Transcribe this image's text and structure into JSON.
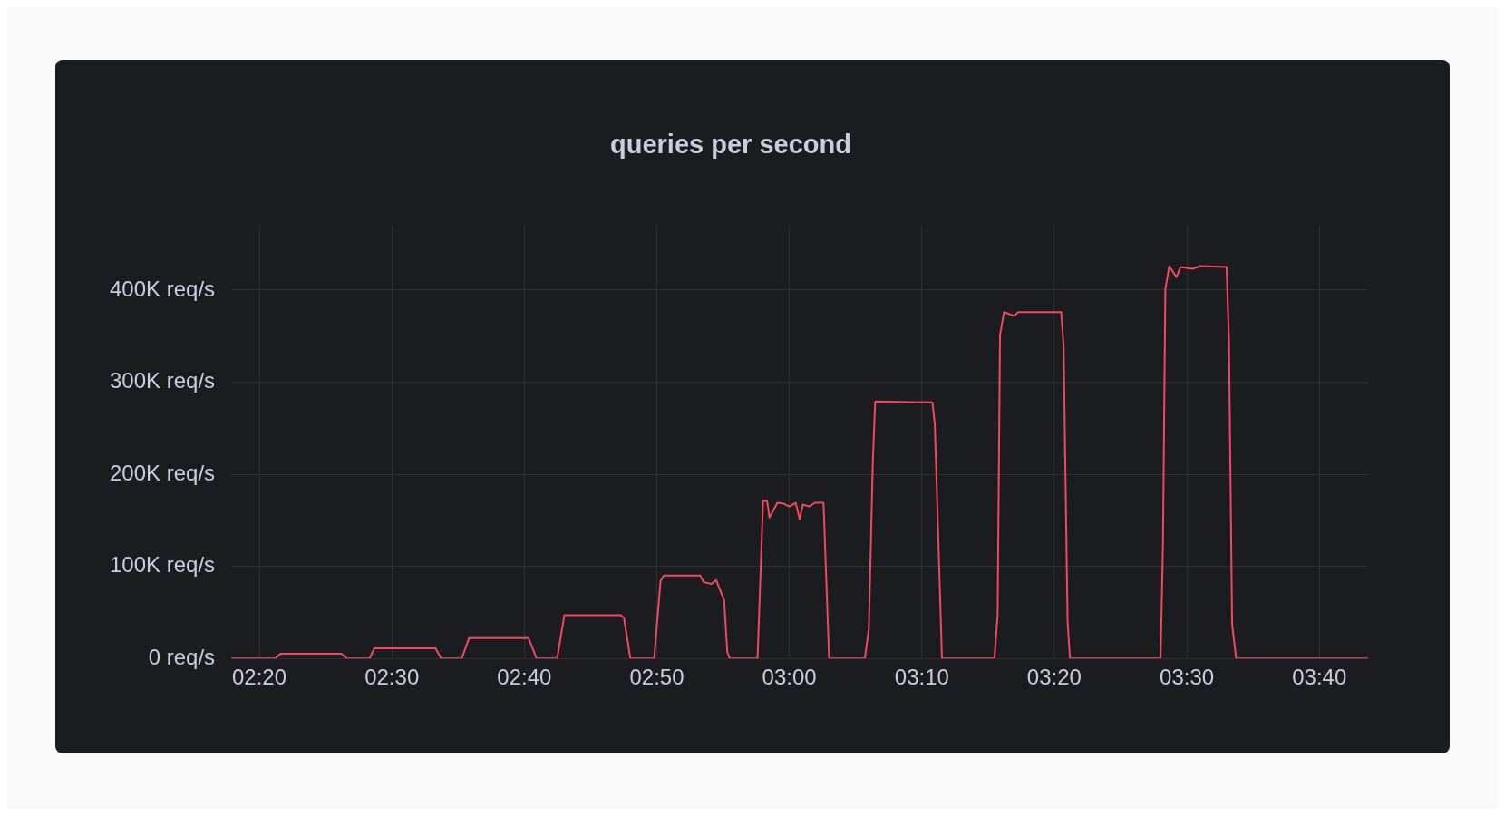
{
  "chart_data": {
    "type": "line",
    "title": "queries per second",
    "x": [
      2.298,
      2.353,
      2.36,
      2.437,
      2.443,
      2.472,
      2.478,
      2.555,
      2.562,
      2.588,
      2.597,
      2.672,
      2.682,
      2.708,
      2.717,
      2.788,
      2.792,
      2.8,
      2.83,
      2.838,
      2.842,
      2.888,
      2.892,
      2.902,
      2.908,
      2.918,
      2.922,
      2.925,
      2.96,
      2.967,
      2.972,
      2.975,
      2.985,
      2.993,
      3.0,
      3.008,
      3.013,
      3.017,
      3.025,
      3.032,
      3.043,
      3.05,
      3.095,
      3.1,
      3.105,
      3.108,
      3.18,
      3.183,
      3.192,
      3.258,
      3.262,
      3.265,
      3.27,
      3.283,
      3.288,
      3.342,
      3.345,
      3.35,
      3.353,
      3.467,
      3.47,
      3.473,
      3.478,
      3.487,
      3.492,
      3.507,
      3.517,
      3.55,
      3.553,
      3.557,
      3.562,
      3.728
    ],
    "series": [
      {
        "color": "#f2495c",
        "values": [
          0,
          0,
          5000,
          5000,
          0,
          0,
          11000,
          11000,
          0,
          0,
          22000,
          22000,
          0,
          0,
          47000,
          47000,
          44000,
          0,
          0,
          84000,
          90000,
          90000,
          83000,
          81000,
          85000,
          63000,
          7000,
          0,
          0,
          171000,
          171000,
          153000,
          169000,
          168000,
          165000,
          169000,
          151000,
          167000,
          165000,
          169000,
          169000,
          0,
          0,
          32000,
          213000,
          279000,
          278000,
          254000,
          0,
          0,
          48000,
          351000,
          376000,
          372000,
          376000,
          376000,
          339000,
          40000,
          0,
          0,
          124000,
          401000,
          426000,
          414000,
          425000,
          423000,
          426000,
          425000,
          345000,
          37000,
          0,
          0
        ]
      }
    ],
    "xlim": [
      2.298,
      3.728
    ],
    "xticks": [
      {
        "value": 2.3333,
        "label": "02:20"
      },
      {
        "value": 2.5,
        "label": "02:30"
      },
      {
        "value": 2.6667,
        "label": "02:40"
      },
      {
        "value": 2.8333,
        "label": "02:50"
      },
      {
        "value": 3,
        "label": "03:00"
      },
      {
        "value": 3.1667,
        "label": "03:10"
      },
      {
        "value": 3.3333,
        "label": "03:20"
      },
      {
        "value": 3.5,
        "label": "03:30"
      },
      {
        "value": 3.6667,
        "label": "03:40"
      }
    ],
    "ylim": [
      0,
      470000
    ],
    "yticks": [
      {
        "value": 0,
        "label": "0 req/s"
      },
      {
        "value": 100000,
        "label": "100K req/s"
      },
      {
        "value": 200000,
        "label": "200K req/s"
      },
      {
        "value": 300000,
        "label": "300K req/s"
      },
      {
        "value": 400000,
        "label": "400K req/s"
      }
    ],
    "grid": true,
    "legend": false,
    "marker": "none",
    "line_style": "solid"
  }
}
